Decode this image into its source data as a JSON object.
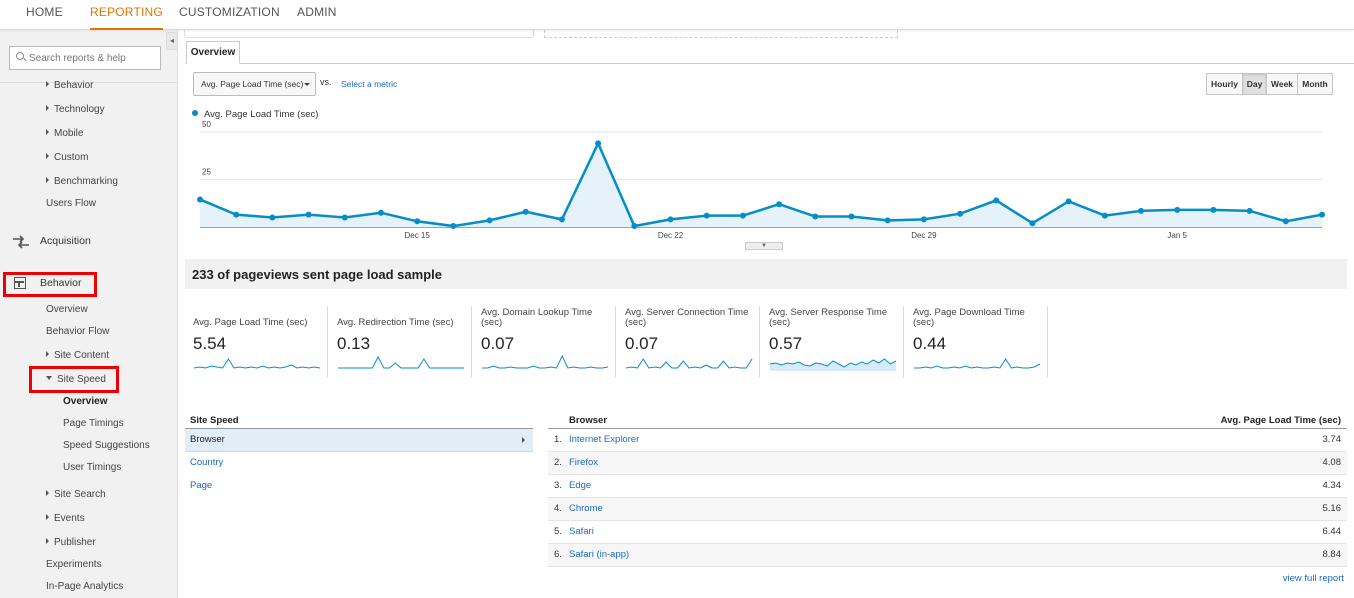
{
  "topnav": {
    "tabs": [
      {
        "label": "HOME",
        "active": false
      },
      {
        "label": "REPORTING",
        "active": true
      },
      {
        "label": "CUSTOMIZATION",
        "active": false
      },
      {
        "label": "ADMIN",
        "active": false
      }
    ],
    "accent_color": "#e37400"
  },
  "sidebar": {
    "search_placeholder": "Search reports & help",
    "items": {
      "behavior_top": "Behavior",
      "technology": "Technology",
      "mobile": "Mobile",
      "custom": "Custom",
      "benchmarking": "Benchmarking",
      "users_flow": "Users Flow",
      "acquisition": "Acquisition",
      "behavior": "Behavior",
      "overview": "Overview",
      "behavior_flow": "Behavior Flow",
      "site_content": "Site Content",
      "site_speed": "Site Speed",
      "ss_overview": "Overview",
      "page_timings": "Page Timings",
      "speed_suggestions": "Speed Suggestions",
      "user_timings": "User Timings",
      "site_search": "Site Search",
      "events": "Events",
      "publisher": "Publisher",
      "experiments": "Experiments",
      "in_page": "In-Page Analytics"
    },
    "highlight_color": "#e00000"
  },
  "report": {
    "tab_label": "Overview",
    "metric_select": "Avg. Page Load Time (sec)",
    "vs_label": "vs.",
    "select_metric_link": "Select a metric",
    "periods": [
      "Hourly",
      "Day",
      "Week",
      "Month"
    ],
    "active_period": "Day",
    "legend_label": "Avg. Page Load Time (sec)",
    "summary_title": "233 of pageviews sent page load sample"
  },
  "chart_data": {
    "type": "area",
    "series": [
      {
        "name": "Avg. Page Load Time (sec)",
        "color": "#058dc7",
        "values": [
          14.5,
          6.5,
          5,
          6.5,
          5,
          7.5,
          3,
          0.5,
          3.5,
          8,
          4,
          44,
          0.5,
          4,
          6,
          6,
          12,
          5.5,
          5.5,
          3.5,
          4,
          7,
          14,
          2,
          13.5,
          6,
          8.5,
          9,
          9,
          8.5,
          3,
          6.5
        ]
      }
    ],
    "x_tick_labels": [
      "Dec 15",
      "Dec 22",
      "Dec 29",
      "Jan 5"
    ],
    "x_tick_index": [
      6,
      13,
      20,
      27
    ],
    "y_tick_labels": [
      "50",
      "25"
    ],
    "y_ticks": [
      50,
      25
    ],
    "ylim": [
      0,
      50
    ],
    "grid": true
  },
  "sparklines": [
    {
      "label": "Avg. Page Load Time (sec)",
      "value": "5.54",
      "shape": [
        3,
        4,
        3,
        5,
        4,
        3,
        12,
        3,
        4,
        3,
        4,
        3,
        5,
        3,
        4,
        3,
        4,
        6,
        3,
        4,
        3,
        4,
        3
      ],
      "fill": false
    },
    {
      "label": "Avg. Redirection Time (sec)",
      "value": "0.13",
      "shape": [
        3,
        3,
        3,
        3,
        3,
        3,
        3,
        14,
        3,
        3,
        8,
        3,
        3,
        3,
        3,
        12,
        3,
        3,
        3,
        3,
        3,
        3,
        3
      ],
      "fill": false
    },
    {
      "label": "Avg. Domain Lookup Time (sec)",
      "value": "0.07",
      "shape": [
        3,
        3,
        5,
        3,
        3,
        4,
        3,
        3,
        3,
        5,
        3,
        3,
        4,
        3,
        15,
        3,
        4,
        3,
        3,
        4,
        3,
        3,
        4
      ],
      "fill": false
    },
    {
      "label": "Avg. Server Connection Time (sec)",
      "value": "0.07",
      "shape": [
        3,
        4,
        3,
        12,
        3,
        4,
        3,
        9,
        3,
        3,
        10,
        3,
        4,
        3,
        6,
        3,
        3,
        10,
        3,
        4,
        3,
        3,
        12
      ],
      "fill": false
    },
    {
      "label": "Avg. Server Response Time (sec)",
      "value": "0.57",
      "shape": [
        7,
        8,
        6,
        8,
        7,
        9,
        6,
        5,
        8,
        7,
        5,
        10,
        7,
        4,
        8,
        6,
        9,
        7,
        11,
        8,
        12,
        7,
        10
      ],
      "fill": true
    },
    {
      "label": "Avg. Page Download Time (sec)",
      "value": "0.44",
      "shape": [
        3,
        3,
        4,
        3,
        5,
        3,
        3,
        4,
        3,
        5,
        3,
        4,
        3,
        3,
        4,
        3,
        12,
        3,
        4,
        3,
        3,
        4,
        7
      ],
      "fill": false
    }
  ],
  "site_speed_table": {
    "header": "Site Speed",
    "rows": [
      "Browser",
      "Country",
      "Page"
    ],
    "selected": "Browser"
  },
  "browser_table": {
    "col1": "Browser",
    "col2": "Avg. Page Load Time (sec)",
    "rows": [
      {
        "num": "1.",
        "name": "Internet Explorer",
        "value": "3.74"
      },
      {
        "num": "2.",
        "name": "Firefox",
        "value": "4.08"
      },
      {
        "num": "3.",
        "name": "Edge",
        "value": "4.34"
      },
      {
        "num": "4.",
        "name": "Chrome",
        "value": "5.16"
      },
      {
        "num": "5.",
        "name": "Safari",
        "value": "6.44"
      },
      {
        "num": "6.",
        "name": "Safari (in-app)",
        "value": "8.84"
      }
    ],
    "full_report_link": "view full report"
  }
}
